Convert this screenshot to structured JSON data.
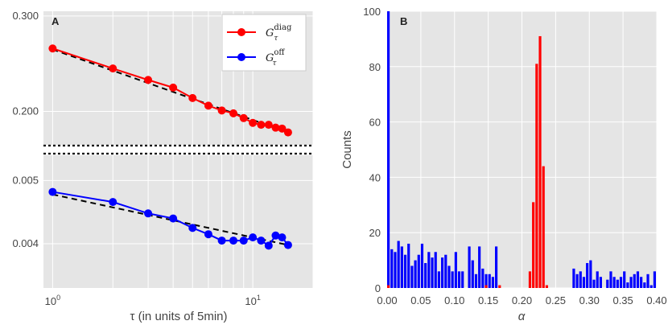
{
  "chart_data": [
    {
      "panel": "A",
      "type": "line",
      "xscale": "log",
      "xlabel": "τ (in units of 5min)",
      "xlim": [
        0.9,
        20
      ],
      "xticks": [
        {
          "v": 1,
          "base": "10",
          "exp": "0"
        },
        {
          "v": 10,
          "base": "10",
          "exp": "1"
        }
      ],
      "grid": true,
      "legend": "top-right",
      "upper": {
        "ylim": [
          0.165,
          0.305
        ],
        "yticks": [
          "0.200",
          "0.300"
        ],
        "series": [
          {
            "name": "G",
            "sup": "diag",
            "sub": "τ",
            "color": "#ff0000",
            "x": [
              1,
              2,
              3,
              4,
              5,
              6,
              7,
              8,
              9,
              10,
              11,
              12,
              13,
              14,
              15
            ],
            "y": [
              0.266,
              0.245,
              0.233,
              0.225,
              0.214,
              0.206,
              0.201,
              0.198,
              0.193,
              0.188,
              0.186,
              0.186,
              0.183,
              0.182,
              0.178
            ]
          }
        ],
        "fit": {
          "x": [
            1,
            15
          ],
          "y": [
            0.265,
            0.178
          ]
        }
      },
      "lower": {
        "ylim": [
          0.0033,
          0.0054
        ],
        "yticks": [
          "0.004",
          "0.005"
        ],
        "series": [
          {
            "name": "G",
            "sup": "off",
            "sub": "τ",
            "color": "#0000ff",
            "x": [
              1,
              2,
              3,
              4,
              5,
              6,
              7,
              8,
              9,
              10,
              11,
              12,
              13,
              14,
              15
            ],
            "y": [
              0.00482,
              0.00466,
              0.00448,
              0.0044,
              0.00425,
              0.00415,
              0.00405,
              0.00405,
              0.00405,
              0.0041,
              0.00405,
              0.00397,
              0.00413,
              0.0041,
              0.00398
            ]
          }
        ],
        "fit": {
          "x": [
            1,
            15
          ],
          "y": [
            0.00478,
            0.00398
          ]
        }
      }
    },
    {
      "panel": "B",
      "type": "bar",
      "xlabel": "α",
      "ylabel": "Counts",
      "xlim": [
        0.0,
        0.4
      ],
      "ylim": [
        0,
        100
      ],
      "xticks": [
        "0.00",
        "0.05",
        "0.10",
        "0.15",
        "0.20",
        "0.25",
        "0.30",
        "0.35",
        "0.40"
      ],
      "yticks": [
        "0",
        "20",
        "40",
        "60",
        "80",
        "100"
      ],
      "bin_width": 0.005,
      "bin_start": 0.0,
      "series": [
        {
          "name": "off",
          "color": "#0000ff",
          "values": [
            100,
            14,
            13,
            17,
            15,
            12,
            16,
            8,
            10,
            12,
            16,
            9,
            13,
            11,
            13,
            6,
            11,
            12,
            8,
            6,
            13,
            6,
            6,
            0,
            15,
            10,
            5,
            15,
            7,
            5,
            5,
            4,
            15,
            0,
            0,
            0,
            0,
            0,
            0,
            0,
            0,
            0,
            0,
            0,
            0,
            0,
            0,
            0,
            0,
            0,
            0,
            0,
            0,
            0,
            0,
            7,
            5,
            6,
            4,
            9,
            10,
            3,
            6,
            4,
            0,
            3,
            6,
            4,
            3,
            4,
            6,
            2,
            4,
            5,
            6,
            4,
            2,
            5,
            1,
            6
          ]
        },
        {
          "name": "diag",
          "color": "#ff0000",
          "values": [
            1,
            0,
            0,
            0,
            0,
            0,
            0,
            0,
            0,
            0,
            0,
            0,
            0,
            0,
            0,
            0,
            0,
            0,
            0,
            0,
            0,
            0,
            0,
            0,
            0,
            0,
            0,
            0,
            0,
            1,
            0,
            0,
            0,
            1,
            0,
            0,
            0,
            0,
            0,
            0,
            0,
            0,
            6,
            31,
            81,
            91,
            44,
            1,
            0,
            0,
            0,
            0,
            0,
            0,
            0,
            0,
            0,
            0,
            0,
            0,
            0,
            0,
            0,
            0,
            0,
            0,
            0,
            0,
            0,
            0,
            0,
            0,
            0,
            0,
            0,
            0,
            0,
            0,
            0,
            0
          ]
        }
      ]
    }
  ]
}
